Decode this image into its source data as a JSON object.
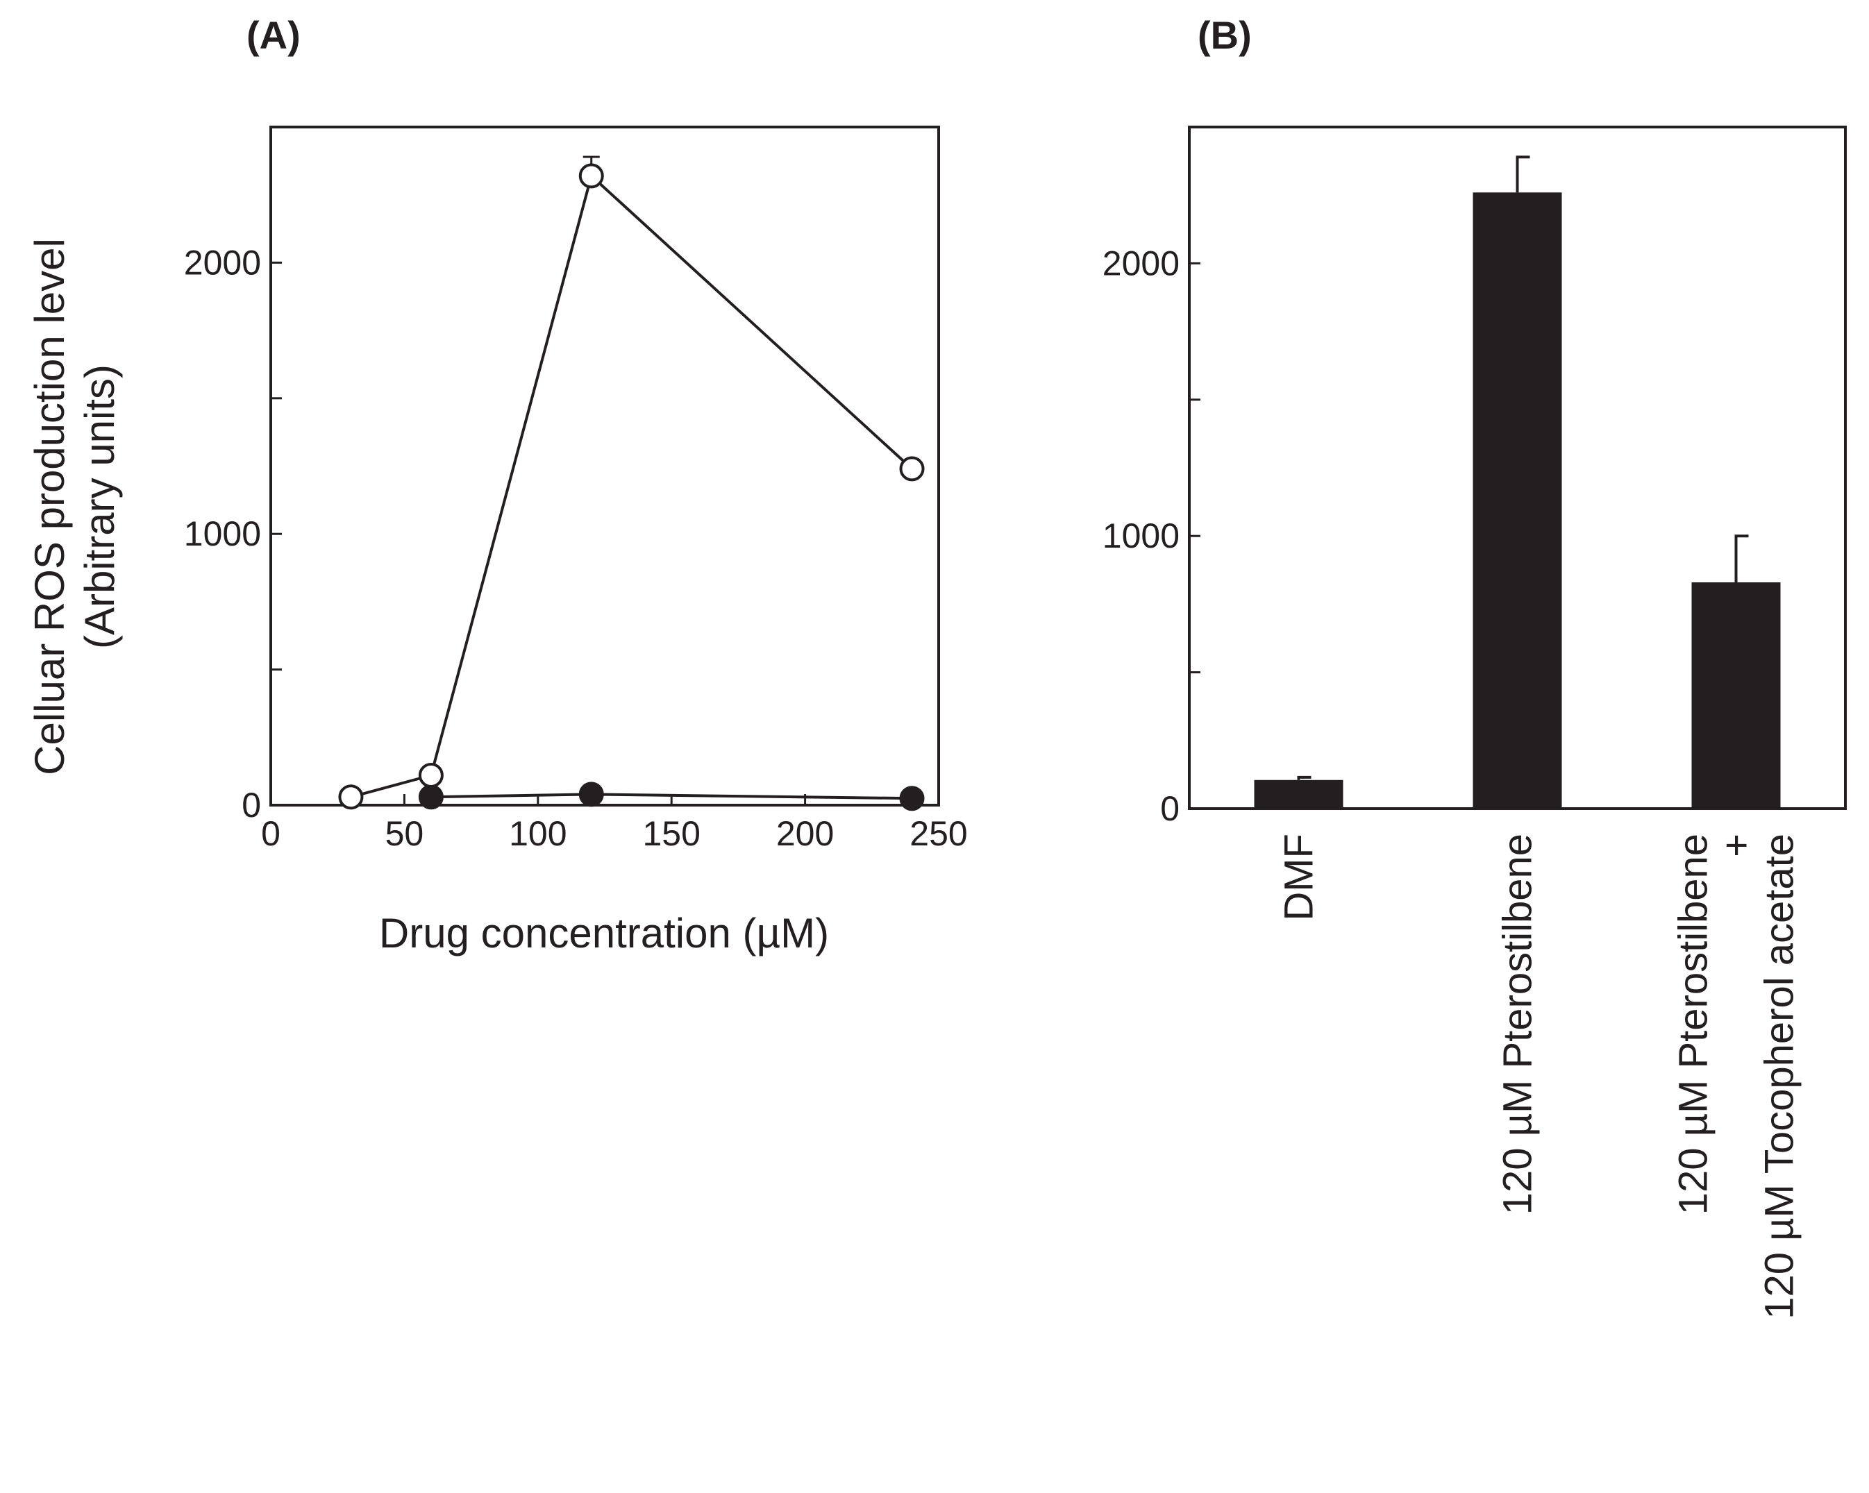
{
  "figure": {
    "panels": [
      {
        "label": "(A)"
      },
      {
        "label": "(B)"
      }
    ],
    "ylabel_line1": "Celluar ROS production level",
    "ylabel_line2": "(Arbitrary units)"
  },
  "chart_data": [
    {
      "type": "line",
      "panel": "(A)",
      "title": "",
      "xlabel": "Drug concentration (µM)",
      "ylabel": "Celluar ROS production level (Arbitrary units)",
      "xlim": [
        0,
        250
      ],
      "ylim": [
        0,
        2500
      ],
      "xticks": [
        0,
        50,
        100,
        150,
        200,
        250
      ],
      "yticks_labeled": [
        0,
        1000,
        2000
      ],
      "yticks_minor": [
        500,
        1500
      ],
      "grid": false,
      "series": [
        {
          "name": "open circles",
          "marker": "open-circle",
          "x": [
            30,
            60,
            120,
            240
          ],
          "y": [
            30,
            110,
            2320,
            1240
          ],
          "error": [
            0,
            0,
            70,
            0
          ]
        },
        {
          "name": "filled circles",
          "marker": "filled-circle",
          "x": [
            60,
            120,
            240
          ],
          "y": [
            30,
            40,
            25
          ],
          "error": [
            0,
            0,
            0
          ]
        }
      ]
    },
    {
      "type": "bar",
      "panel": "(B)",
      "title": "",
      "xlabel": "",
      "ylabel": "Celluar ROS production level (Arbitrary units)",
      "ylim": [
        0,
        2500
      ],
      "yticks_labeled": [
        0,
        1000,
        2000
      ],
      "yticks_minor": [
        500,
        1500
      ],
      "grid": false,
      "categories": [
        {
          "lines": [
            "DMF"
          ]
        },
        {
          "lines": [
            "120 µM Pterostilbene"
          ]
        },
        {
          "lines": [
            "120 µM Pterostilbene",
            "+",
            "120 µM Tocopherol acetate"
          ]
        }
      ],
      "values": [
        105,
        2260,
        830
      ],
      "errors": [
        10,
        130,
        170
      ],
      "color": "#231f20"
    }
  ]
}
